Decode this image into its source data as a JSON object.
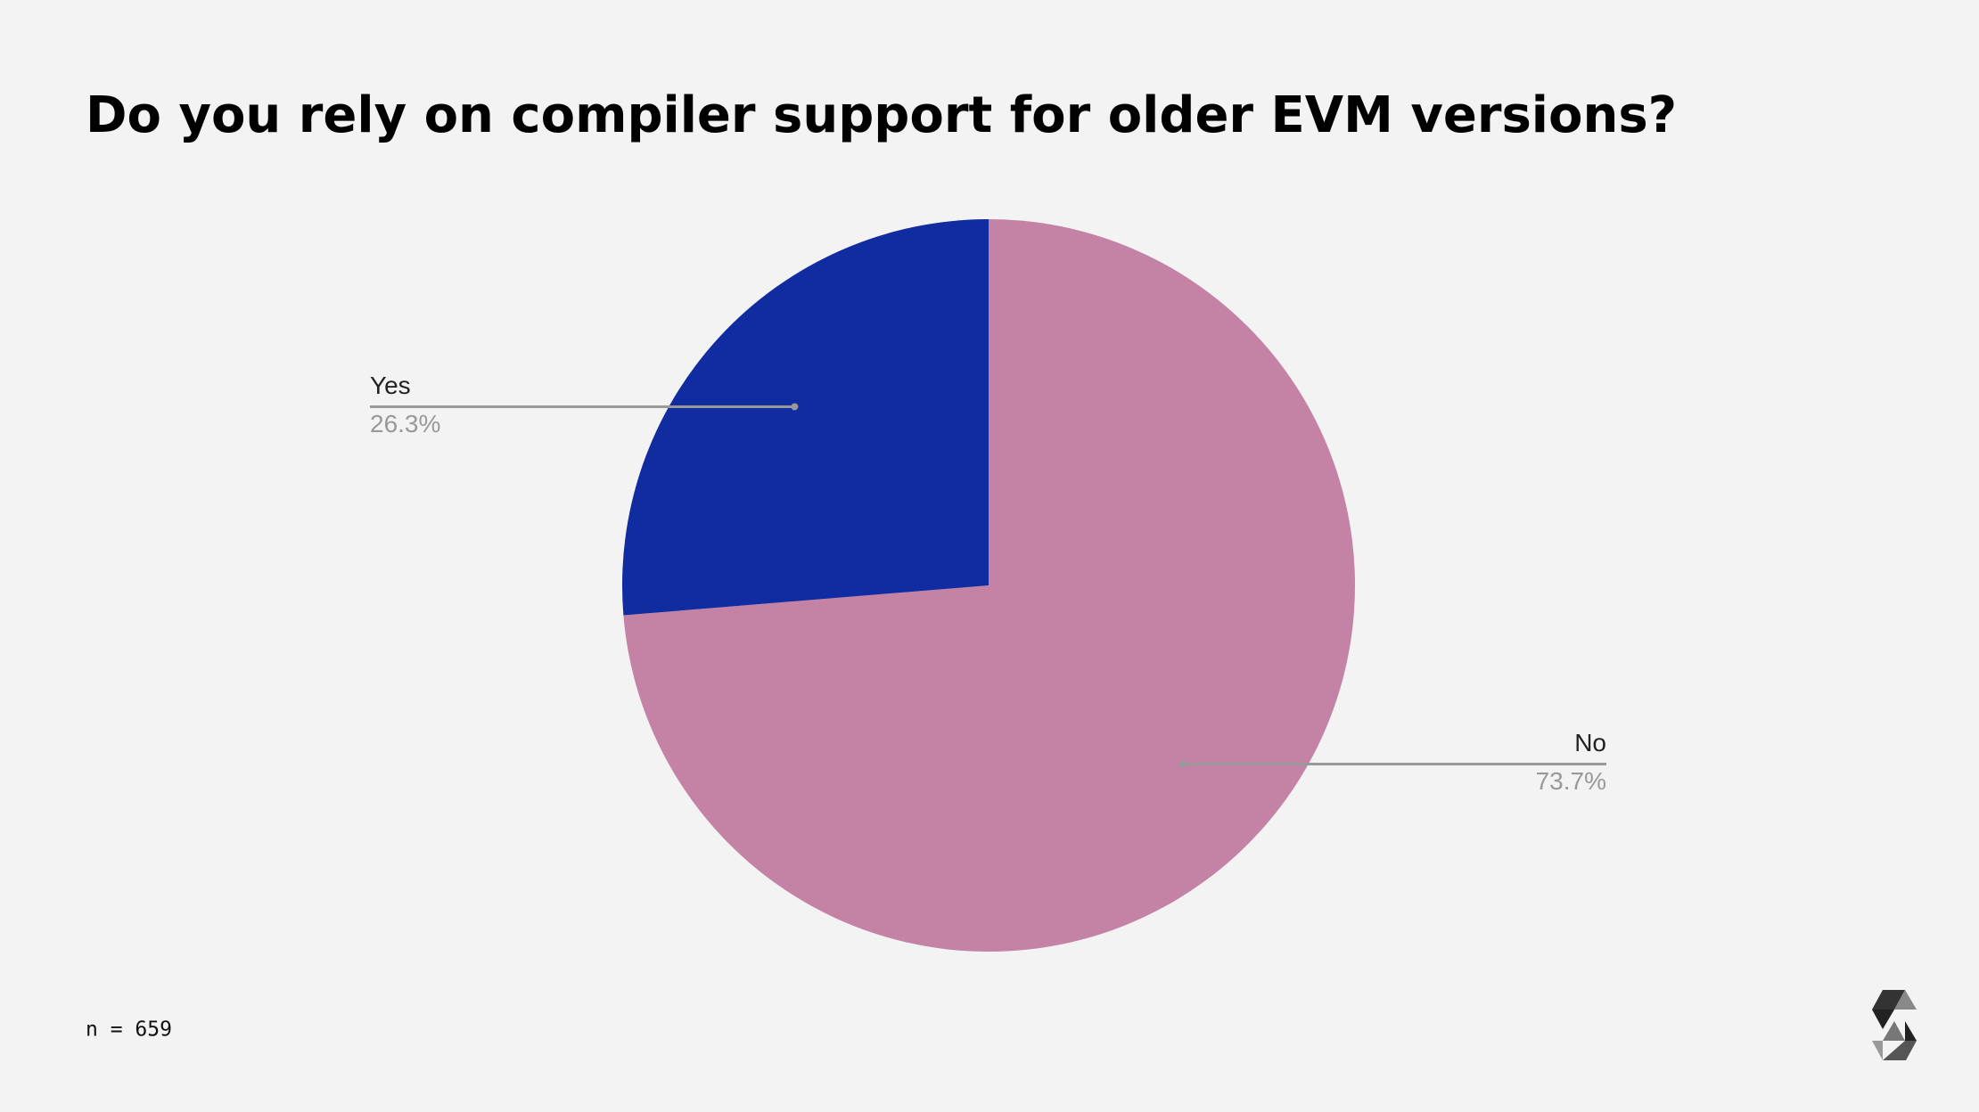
{
  "chart_data": {
    "type": "pie",
    "title": "Do you rely on compiler support for older EVM versions?",
    "categories": [
      "No",
      "Yes"
    ],
    "values": [
      73.7,
      26.3
    ],
    "value_labels": [
      "73.7%",
      "26.3%"
    ],
    "colors": [
      "#c482a4",
      "#102ca0"
    ],
    "annotation": "n = 659"
  }
}
